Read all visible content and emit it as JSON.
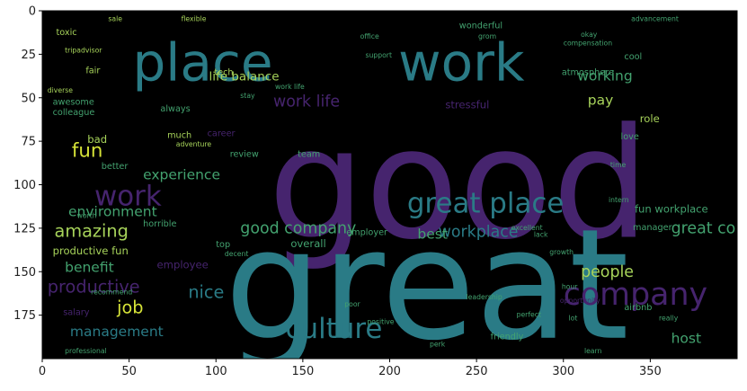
{
  "chart_data": {
    "type": "wordcloud",
    "background": "#000000",
    "palette": {
      "purple": "#46246e",
      "teal": "#2a7b86",
      "green": "#43a26f",
      "lime": "#a7d35a",
      "yellow": "#d6e338",
      "blue": "#36588b"
    },
    "x_ticks": [
      0,
      50,
      100,
      150,
      200,
      250,
      300,
      350
    ],
    "y_ticks": [
      0,
      25,
      50,
      75,
      100,
      125,
      150,
      175
    ],
    "xlim": [
      0,
      400
    ],
    "ylim": [
      200,
      0
    ],
    "words": [
      {
        "text": "good",
        "x": 130,
        "y": 130,
        "size": 88,
        "color": "purple"
      },
      {
        "text": "great",
        "x": 105,
        "y": 188,
        "size": 88,
        "color": "teal"
      },
      {
        "text": "place",
        "x": 52,
        "y": 40,
        "size": 30,
        "color": "teal"
      },
      {
        "text": "work",
        "x": 205,
        "y": 40,
        "size": 30,
        "color": "teal"
      },
      {
        "text": "great place",
        "x": 210,
        "y": 116,
        "size": 16,
        "color": "teal"
      },
      {
        "text": "company",
        "x": 300,
        "y": 169,
        "size": 18,
        "color": "purple"
      },
      {
        "text": "culture",
        "x": 140,
        "y": 188,
        "size": 16,
        "color": "teal"
      },
      {
        "text": "work",
        "x": 30,
        "y": 112,
        "size": 16,
        "color": "purple"
      },
      {
        "text": "fun",
        "x": 17,
        "y": 84,
        "size": 11,
        "color": "yellow"
      },
      {
        "text": "amazing",
        "x": 7,
        "y": 130,
        "size": 10,
        "color": "lime"
      },
      {
        "text": "productive",
        "x": 3,
        "y": 162,
        "size": 10,
        "color": "purple"
      },
      {
        "text": "nice",
        "x": 84,
        "y": 165,
        "size": 10,
        "color": "teal"
      },
      {
        "text": "job",
        "x": 43,
        "y": 174,
        "size": 10,
        "color": "yellow"
      },
      {
        "text": "management",
        "x": 16,
        "y": 187,
        "size": 8,
        "color": "teal"
      },
      {
        "text": "workplace",
        "x": 228,
        "y": 130,
        "size": 9,
        "color": "teal"
      },
      {
        "text": "people",
        "x": 310,
        "y": 153,
        "size": 9,
        "color": "lime"
      },
      {
        "text": "work life",
        "x": 133,
        "y": 55,
        "size": 9,
        "color": "purple"
      },
      {
        "text": "life balance",
        "x": 96,
        "y": 40,
        "size": 7,
        "color": "lime"
      },
      {
        "text": "working",
        "x": 308,
        "y": 40,
        "size": 8,
        "color": "green"
      },
      {
        "text": "pay",
        "x": 314,
        "y": 54,
        "size": 8,
        "color": "lime"
      },
      {
        "text": "benefit",
        "x": 13,
        "y": 150,
        "size": 8,
        "color": "green"
      },
      {
        "text": "productive fun",
        "x": 6,
        "y": 140,
        "size": 6,
        "color": "lime"
      },
      {
        "text": "best",
        "x": 216,
        "y": 131,
        "size": 8,
        "color": "green"
      },
      {
        "text": "host",
        "x": 362,
        "y": 191,
        "size": 8,
        "color": "green"
      },
      {
        "text": "stressful",
        "x": 232,
        "y": 56,
        "size": 6,
        "color": "purple"
      },
      {
        "text": "employee",
        "x": 66,
        "y": 148,
        "size": 6,
        "color": "purple"
      },
      {
        "text": "overall",
        "x": 143,
        "y": 136,
        "size": 6,
        "color": "green"
      },
      {
        "text": "employer",
        "x": 175,
        "y": 129,
        "size": 5,
        "color": "green"
      },
      {
        "text": "manager",
        "x": 340,
        "y": 126,
        "size": 5,
        "color": "green"
      },
      {
        "text": "airbnb",
        "x": 335,
        "y": 172,
        "size": 5,
        "color": "green"
      },
      {
        "text": "friendly",
        "x": 258,
        "y": 189,
        "size": 5,
        "color": "green"
      },
      {
        "text": "salary",
        "x": 12,
        "y": 175,
        "size": 5,
        "color": "purple"
      },
      {
        "text": "bad",
        "x": 26,
        "y": 76,
        "size": 6,
        "color": "lime"
      },
      {
        "text": "better",
        "x": 34,
        "y": 91,
        "size": 5,
        "color": "green"
      },
      {
        "text": "fair",
        "x": 25,
        "y": 36,
        "size": 5,
        "color": "lime"
      },
      {
        "text": "awesome",
        "x": 6,
        "y": 54,
        "size": 5,
        "color": "green"
      },
      {
        "text": "colleague",
        "x": 6,
        "y": 60,
        "size": 5,
        "color": "green"
      },
      {
        "text": "toxic",
        "x": 8,
        "y": 14,
        "size": 5,
        "color": "lime"
      },
      {
        "text": "diverse",
        "x": 3,
        "y": 47,
        "size": 4,
        "color": "lime"
      },
      {
        "text": "atmosphere",
        "x": 299,
        "y": 37,
        "size": 5,
        "color": "green"
      },
      {
        "text": "wonderful",
        "x": 240,
        "y": 10,
        "size": 5,
        "color": "green"
      },
      {
        "text": "compensation",
        "x": 300,
        "y": 20,
        "size": 4,
        "color": "green"
      },
      {
        "text": "cool",
        "x": 335,
        "y": 28,
        "size": 5,
        "color": "green"
      },
      {
        "text": "office",
        "x": 183,
        "y": 16,
        "size": 4,
        "color": "green"
      },
      {
        "text": "grom",
        "x": 251,
        "y": 16,
        "size": 4,
        "color": "green"
      },
      {
        "text": "okay",
        "x": 310,
        "y": 15,
        "size": 4,
        "color": "green"
      },
      {
        "text": "tech",
        "x": 99,
        "y": 37,
        "size": 5,
        "color": "lime"
      },
      {
        "text": "stay",
        "x": 114,
        "y": 50,
        "size": 4,
        "color": "green"
      },
      {
        "text": "always",
        "x": 68,
        "y": 58,
        "size": 5,
        "color": "green"
      },
      {
        "text": "much",
        "x": 72,
        "y": 73,
        "size": 5,
        "color": "lime"
      },
      {
        "text": "career",
        "x": 95,
        "y": 72,
        "size": 5,
        "color": "purple"
      },
      {
        "text": "team",
        "x": 147,
        "y": 84,
        "size": 5,
        "color": "green"
      },
      {
        "text": "love",
        "x": 333,
        "y": 74,
        "size": 5,
        "color": "green"
      },
      {
        "text": "time",
        "x": 327,
        "y": 90,
        "size": 4,
        "color": "green"
      },
      {
        "text": "intern",
        "x": 326,
        "y": 110,
        "size": 4,
        "color": "green"
      },
      {
        "text": "review",
        "x": 108,
        "y": 84,
        "size": 5,
        "color": "green"
      },
      {
        "text": "horrible",
        "x": 58,
        "y": 124,
        "size": 5,
        "color": "green"
      },
      {
        "text": "worth",
        "x": 20,
        "y": 119,
        "size": 4,
        "color": "green"
      },
      {
        "text": "top",
        "x": 100,
        "y": 136,
        "size": 5,
        "color": "green"
      },
      {
        "text": "decent",
        "x": 105,
        "y": 141,
        "size": 4,
        "color": "green"
      },
      {
        "text": "growth",
        "x": 292,
        "y": 140,
        "size": 4,
        "color": "green"
      },
      {
        "text": "lack",
        "x": 283,
        "y": 130,
        "size": 4,
        "color": "green"
      },
      {
        "text": "excellent",
        "x": 270,
        "y": 126,
        "size": 4,
        "color": "green"
      },
      {
        "text": "leadership",
        "x": 244,
        "y": 166,
        "size": 4,
        "color": "green"
      },
      {
        "text": "opportunity",
        "x": 298,
        "y": 168,
        "size": 4,
        "color": "purple"
      },
      {
        "text": "hour",
        "x": 299,
        "y": 160,
        "size": 4,
        "color": "green"
      },
      {
        "text": "perfect",
        "x": 273,
        "y": 176,
        "size": 4,
        "color": "green"
      },
      {
        "text": "lot",
        "x": 303,
        "y": 178,
        "size": 4,
        "color": "green"
      },
      {
        "text": "really",
        "x": 355,
        "y": 178,
        "size": 4,
        "color": "green"
      },
      {
        "text": "learn",
        "x": 312,
        "y": 197,
        "size": 4,
        "color": "green"
      },
      {
        "text": "perk",
        "x": 223,
        "y": 193,
        "size": 4,
        "color": "green"
      },
      {
        "text": "positive",
        "x": 187,
        "y": 180,
        "size": 4,
        "color": "green"
      },
      {
        "text": "poor",
        "x": 174,
        "y": 170,
        "size": 4,
        "color": "green"
      },
      {
        "text": "recommend",
        "x": 28,
        "y": 163,
        "size": 4,
        "color": "green"
      },
      {
        "text": "professional",
        "x": 13,
        "y": 197,
        "size": 4,
        "color": "green"
      },
      {
        "text": "good company",
        "x": 114,
        "y": 128,
        "size": 9,
        "color": "green"
      },
      {
        "text": "great company",
        "x": 362,
        "y": 128,
        "size": 9,
        "color": "green"
      },
      {
        "text": "environment",
        "x": 15,
        "y": 118,
        "size": 8,
        "color": "green"
      },
      {
        "text": "experience",
        "x": 58,
        "y": 97,
        "size": 8,
        "color": "green"
      },
      {
        "text": "fun workplace",
        "x": 341,
        "y": 116,
        "size": 6,
        "color": "green"
      },
      {
        "text": "role",
        "x": 344,
        "y": 64,
        "size": 6,
        "color": "lime"
      },
      {
        "text": "sale",
        "x": 38,
        "y": 6,
        "size": 4,
        "color": "lime"
      },
      {
        "text": "flexible",
        "x": 80,
        "y": 6,
        "size": 4,
        "color": "lime"
      },
      {
        "text": "support",
        "x": 186,
        "y": 27,
        "size": 4,
        "color": "green"
      },
      {
        "text": "advancement",
        "x": 339,
        "y": 6,
        "size": 4,
        "color": "green"
      },
      {
        "text": "tripadvisor",
        "x": 13,
        "y": 24,
        "size": 4,
        "color": "lime"
      },
      {
        "text": "adventure",
        "x": 77,
        "y": 78,
        "size": 4,
        "color": "lime"
      },
      {
        "text": "work life",
        "x": 134,
        "y": 45,
        "size": 4,
        "color": "green"
      }
    ]
  }
}
